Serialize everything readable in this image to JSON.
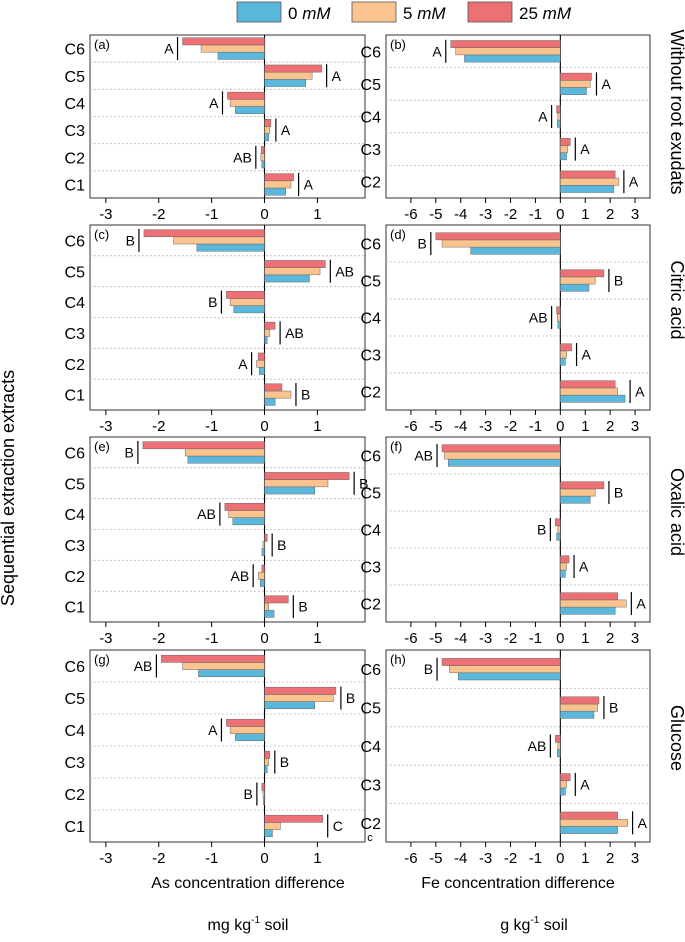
{
  "legend": [
    {
      "value": "0",
      "unit": "mM",
      "color": "#5bb8dd"
    },
    {
      "value": "5",
      "unit": "mM",
      "color": "#fbc48f"
    },
    {
      "value": "25",
      "unit": "mM",
      "color": "#ec7074"
    }
  ],
  "y_title": "Sequential extraction extracts",
  "col_titles": [
    {
      "main": "As concentration difference",
      "unit_pre": "mg kg",
      "unit_sup": "-1",
      "unit_post": " soil"
    },
    {
      "main": "Fe concentration difference",
      "unit_pre": "g kg",
      "unit_sup": "-1",
      "unit_post": " soil"
    }
  ],
  "row_titles": [
    "Without root exudats",
    "Citric acid",
    "Oxalic acid",
    "Glucose"
  ],
  "stray_label": "c",
  "chart_data": [
    {
      "type": "bar",
      "orientation": "horizontal",
      "panel": "(a)",
      "xlim": [
        -3.3,
        1.9
      ],
      "xticks": [
        -3,
        -2,
        -1,
        0,
        1
      ],
      "categories": [
        "C6",
        "C5",
        "C4",
        "C3",
        "C2",
        "C1"
      ],
      "series": [
        {
          "name": "0 mM",
          "values": [
            -0.88,
            0.78,
            -0.55,
            0.08,
            -0.05,
            0.4
          ]
        },
        {
          "name": "5 mM",
          "values": [
            -1.2,
            0.9,
            -0.65,
            0.1,
            -0.07,
            0.5
          ]
        },
        {
          "name": "25 mM",
          "values": [
            -1.55,
            1.08,
            -0.7,
            0.12,
            -0.06,
            0.55
          ]
        }
      ],
      "annotations": [
        {
          "cat": "C6",
          "text": "A"
        },
        {
          "cat": "C5",
          "text": "A"
        },
        {
          "cat": "C4",
          "text": "A"
        },
        {
          "cat": "C3",
          "text": "A"
        },
        {
          "cat": "C2",
          "text": "AB"
        },
        {
          "cat": "C1",
          "text": "A"
        }
      ]
    },
    {
      "type": "bar",
      "orientation": "horizontal",
      "panel": "(b)",
      "xlim": [
        -7.0,
        3.6
      ],
      "xticks": [
        -6,
        -5,
        -4,
        -3,
        -2,
        -1,
        0,
        1,
        2,
        3
      ],
      "categories": [
        "C6",
        "C5",
        "C4",
        "C3",
        "C2"
      ],
      "series": [
        {
          "name": "0 mM",
          "values": [
            -3.85,
            1.05,
            -0.12,
            0.25,
            2.15
          ]
        },
        {
          "name": "5 mM",
          "values": [
            -4.2,
            1.2,
            -0.1,
            0.3,
            2.35
          ]
        },
        {
          "name": "25 mM",
          "values": [
            -4.4,
            1.25,
            -0.15,
            0.4,
            2.2
          ]
        }
      ],
      "annotations": [
        {
          "cat": "C6",
          "text": "A"
        },
        {
          "cat": "C5",
          "text": "A"
        },
        {
          "cat": "C4",
          "text": "A"
        },
        {
          "cat": "C3",
          "text": "A"
        },
        {
          "cat": "C2",
          "text": "A"
        }
      ]
    },
    {
      "type": "bar",
      "orientation": "horizontal",
      "panel": "(c)",
      "xlim": [
        -3.3,
        1.9
      ],
      "xticks": [
        -3,
        -2,
        -1,
        0,
        1
      ],
      "categories": [
        "C6",
        "C5",
        "C4",
        "C3",
        "C2",
        "C1"
      ],
      "series": [
        {
          "name": "0 mM",
          "values": [
            -1.28,
            0.85,
            -0.58,
            0.05,
            -0.1,
            0.2
          ]
        },
        {
          "name": "5 mM",
          "values": [
            -1.72,
            1.05,
            -0.65,
            0.1,
            -0.15,
            0.5
          ]
        },
        {
          "name": "25 mM",
          "values": [
            -2.28,
            1.15,
            -0.72,
            0.2,
            -0.12,
            0.33
          ]
        }
      ],
      "annotations": [
        {
          "cat": "C6",
          "text": "B"
        },
        {
          "cat": "C5",
          "text": "AB"
        },
        {
          "cat": "C4",
          "text": "B"
        },
        {
          "cat": "C3",
          "text": "AB"
        },
        {
          "cat": "C2",
          "text": "A"
        },
        {
          "cat": "C1",
          "text": "B"
        }
      ]
    },
    {
      "type": "bar",
      "orientation": "horizontal",
      "panel": "(d)",
      "xlim": [
        -7.0,
        3.6
      ],
      "xticks": [
        -6,
        -5,
        -4,
        -3,
        -2,
        -1,
        0,
        1,
        2,
        3
      ],
      "categories": [
        "C6",
        "C5",
        "C4",
        "C3",
        "C2"
      ],
      "series": [
        {
          "name": "0 mM",
          "values": [
            -3.6,
            1.15,
            -0.1,
            0.2,
            2.6
          ]
        },
        {
          "name": "5 mM",
          "values": [
            -4.75,
            1.4,
            -0.12,
            0.25,
            2.3
          ]
        },
        {
          "name": "25 mM",
          "values": [
            -5.0,
            1.75,
            -0.15,
            0.45,
            2.2
          ]
        }
      ],
      "annotations": [
        {
          "cat": "C6",
          "text": "B"
        },
        {
          "cat": "C5",
          "text": "B"
        },
        {
          "cat": "C4",
          "text": "AB"
        },
        {
          "cat": "C3",
          "text": "A"
        },
        {
          "cat": "C2",
          "text": "A"
        }
      ]
    },
    {
      "type": "bar",
      "orientation": "horizontal",
      "panel": "(e)",
      "xlim": [
        -3.3,
        1.9
      ],
      "xticks": [
        -3,
        -2,
        -1,
        0,
        1
      ],
      "categories": [
        "C6",
        "C5",
        "C4",
        "C3",
        "C2",
        "C1"
      ],
      "series": [
        {
          "name": "0 mM",
          "values": [
            -1.45,
            0.95,
            -0.6,
            -0.05,
            -0.08,
            0.18
          ]
        },
        {
          "name": "5 mM",
          "values": [
            -1.5,
            1.2,
            -0.68,
            -0.03,
            -0.12,
            0.08
          ]
        },
        {
          "name": "25 mM",
          "values": [
            -2.3,
            1.6,
            -0.75,
            0.05,
            -0.05,
            0.45
          ]
        }
      ],
      "annotations": [
        {
          "cat": "C6",
          "text": "B"
        },
        {
          "cat": "C5",
          "text": "B"
        },
        {
          "cat": "C4",
          "text": "AB"
        },
        {
          "cat": "C3",
          "text": "B"
        },
        {
          "cat": "C2",
          "text": "AB"
        },
        {
          "cat": "C1",
          "text": "B"
        }
      ]
    },
    {
      "type": "bar",
      "orientation": "horizontal",
      "panel": "(f)",
      "xlim": [
        -7.0,
        3.6
      ],
      "xticks": [
        -6,
        -5,
        -4,
        -3,
        -2,
        -1,
        0,
        1,
        2,
        3
      ],
      "categories": [
        "C6",
        "C5",
        "C4",
        "C3",
        "C2"
      ],
      "series": [
        {
          "name": "0 mM",
          "values": [
            -4.5,
            1.2,
            -0.15,
            0.2,
            2.2
          ]
        },
        {
          "name": "5 mM",
          "values": [
            -4.65,
            1.4,
            -0.1,
            0.25,
            2.65
          ]
        },
        {
          "name": "25 mM",
          "values": [
            -4.75,
            1.75,
            -0.2,
            0.35,
            2.3
          ]
        }
      ],
      "annotations": [
        {
          "cat": "C6",
          "text": "AB"
        },
        {
          "cat": "C5",
          "text": "B"
        },
        {
          "cat": "C4",
          "text": "B"
        },
        {
          "cat": "C3",
          "text": "A"
        },
        {
          "cat": "C2",
          "text": "A"
        }
      ]
    },
    {
      "type": "bar",
      "orientation": "horizontal",
      "panel": "(g)",
      "xlim": [
        -3.3,
        1.9
      ],
      "xticks": [
        -3,
        -2,
        -1,
        0,
        1
      ],
      "categories": [
        "C6",
        "C5",
        "C4",
        "C3",
        "C2",
        "C1"
      ],
      "series": [
        {
          "name": "0 mM",
          "values": [
            -1.25,
            0.95,
            -0.55,
            0.05,
            -0.02,
            0.15
          ]
        },
        {
          "name": "5 mM",
          "values": [
            -1.55,
            1.3,
            -0.65,
            0.08,
            -0.03,
            0.3
          ]
        },
        {
          "name": "25 mM",
          "values": [
            -1.95,
            1.35,
            -0.72,
            0.1,
            -0.05,
            1.1
          ]
        }
      ],
      "annotations": [
        {
          "cat": "C6",
          "text": "AB"
        },
        {
          "cat": "C5",
          "text": "B"
        },
        {
          "cat": "C4",
          "text": "A"
        },
        {
          "cat": "C3",
          "text": "B"
        },
        {
          "cat": "C2",
          "text": "B"
        },
        {
          "cat": "C1",
          "text": "C"
        }
      ]
    },
    {
      "type": "bar",
      "orientation": "horizontal",
      "panel": "(h)",
      "xlim": [
        -7.0,
        3.6
      ],
      "xticks": [
        -6,
        -5,
        -4,
        -3,
        -2,
        -1,
        0,
        1,
        2,
        3
      ],
      "categories": [
        "C6",
        "C5",
        "C4",
        "C3",
        "C2"
      ],
      "series": [
        {
          "name": "0 mM",
          "values": [
            -4.1,
            1.35,
            -0.12,
            0.2,
            2.3
          ]
        },
        {
          "name": "5 mM",
          "values": [
            -4.45,
            1.5,
            -0.1,
            0.25,
            2.7
          ]
        },
        {
          "name": "25 mM",
          "values": [
            -4.75,
            1.55,
            -0.2,
            0.4,
            2.3
          ]
        }
      ],
      "annotations": [
        {
          "cat": "C6",
          "text": "B"
        },
        {
          "cat": "C5",
          "text": "B"
        },
        {
          "cat": "C4",
          "text": "AB"
        },
        {
          "cat": "C3",
          "text": "A"
        },
        {
          "cat": "C2",
          "text": "A"
        }
      ]
    }
  ]
}
